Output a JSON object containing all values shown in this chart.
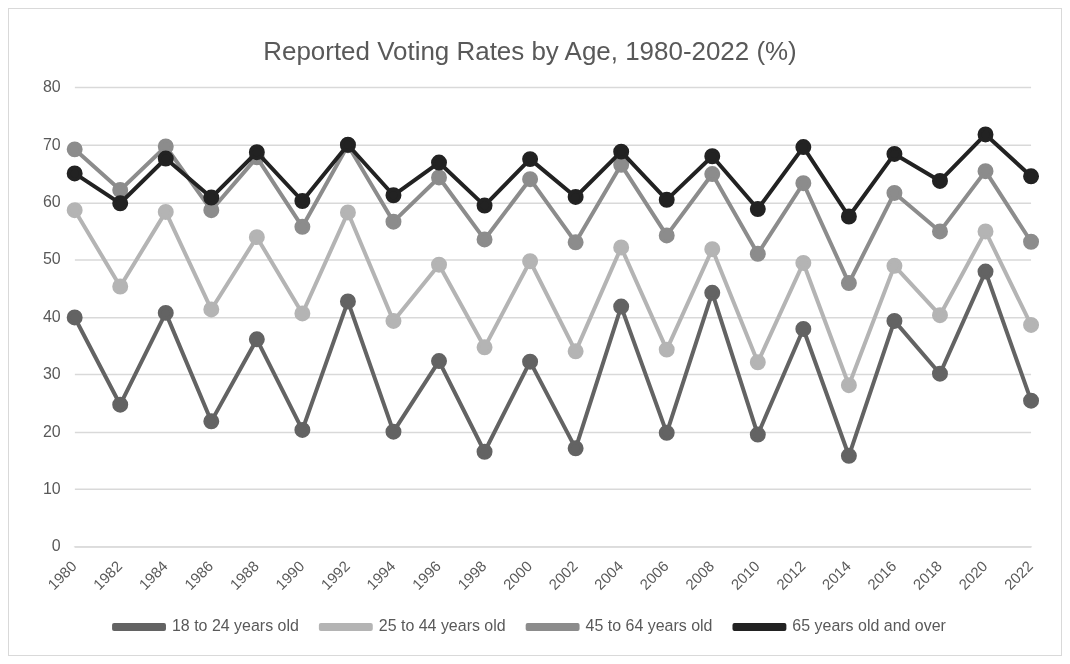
{
  "chart_data": {
    "type": "line",
    "title": "Reported Voting Rates by Age, 1980-2022 (%)",
    "categories": [
      "1980",
      "1982",
      "1984",
      "1986",
      "1988",
      "1990",
      "1992",
      "1994",
      "1996",
      "1998",
      "2000",
      "2002",
      "2004",
      "2006",
      "2008",
      "2010",
      "2012",
      "2014",
      "2016",
      "2018",
      "2020",
      "2022"
    ],
    "series": [
      {
        "name": "18 to 24 years old",
        "color": "#636363",
        "values": [
          40,
          24.8,
          40.8,
          21.9,
          36.2,
          20.4,
          42.8,
          20.1,
          32.4,
          16.6,
          32.3,
          17.2,
          41.9,
          19.9,
          44.3,
          19.6,
          38,
          15.9,
          39.4,
          30.2,
          48,
          25.5
        ]
      },
      {
        "name": "25 to 44 years old",
        "color": "#b4b4b4",
        "values": [
          58.7,
          45.4,
          58.4,
          41.4,
          54,
          40.7,
          58.3,
          39.4,
          49.2,
          34.8,
          49.8,
          34.1,
          52.2,
          34.4,
          51.9,
          32.2,
          49.5,
          28.2,
          49,
          40.4,
          55,
          38.7
        ]
      },
      {
        "name": "45 to 64 years old",
        "color": "#8c8c8c",
        "values": [
          69.3,
          62.2,
          69.8,
          58.7,
          67.9,
          55.8,
          70,
          56.7,
          64.4,
          53.6,
          64.1,
          53.1,
          66.6,
          54.3,
          65,
          51.1,
          63.4,
          46,
          61.7,
          55,
          65.5,
          53.2
        ]
      },
      {
        "name": "65 years old and over",
        "color": "#222222",
        "values": [
          65.1,
          59.9,
          67.7,
          60.9,
          68.8,
          60.3,
          70.1,
          61.3,
          67,
          59.5,
          67.6,
          61,
          68.9,
          60.5,
          68.1,
          58.9,
          69.7,
          57.6,
          68.5,
          63.8,
          71.9,
          64.6
        ]
      }
    ],
    "ylim": [
      0,
      80
    ],
    "yticks": [
      0,
      10,
      20,
      30,
      40,
      50,
      60,
      70,
      80
    ],
    "grid": "y",
    "legend": "bottom",
    "marker": "circle",
    "line_style": "solid"
  }
}
